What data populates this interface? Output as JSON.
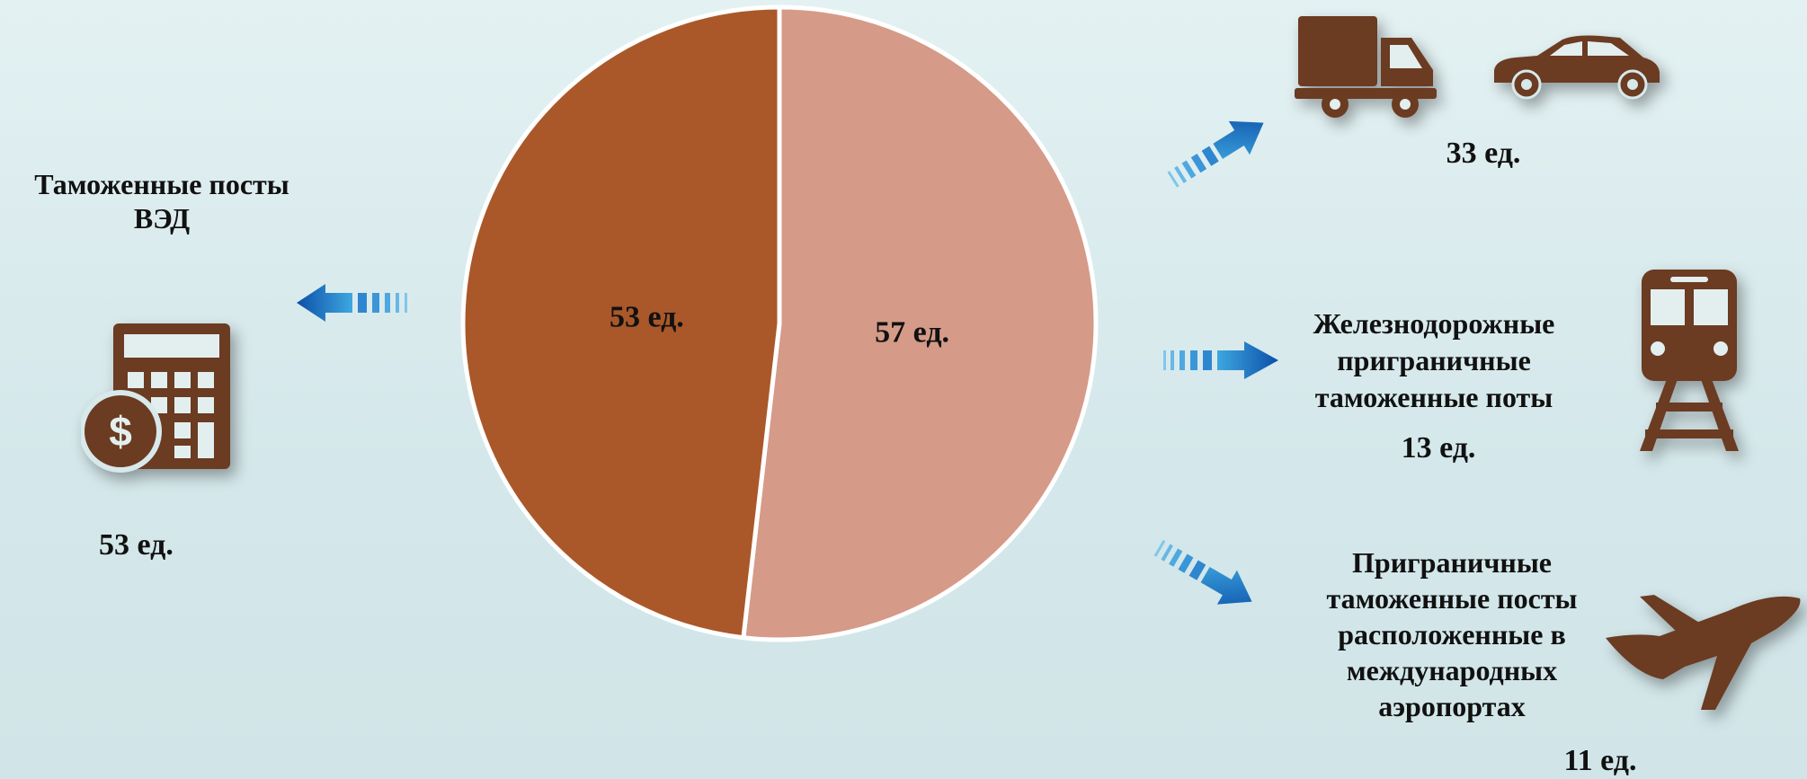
{
  "colors": {
    "brown": "#6b3b22",
    "slice_dark": "#aa5829",
    "slice_light": "#d59a88",
    "arrow": "#1f6fc6"
  },
  "chart_data": {
    "type": "pie",
    "title": "",
    "slices": [
      {
        "label": "57 ед.",
        "value": 57,
        "color": "#d59a88"
      },
      {
        "label": "53 ед.",
        "value": 53,
        "color": "#aa5829"
      }
    ]
  },
  "left": {
    "title_line1": "Таможенные посты",
    "title_line2": "ВЭД",
    "count": "53 ед.",
    "icon": "calculator-dollar-icon"
  },
  "right": {
    "road": {
      "count": "33 ед.",
      "icons": [
        "truck-icon",
        "car-icon"
      ]
    },
    "rail": {
      "line1": "Железнодорожные",
      "line2": "приграничные",
      "line3": "таможенные поты",
      "count": "13 ед.",
      "icon": "train-icon"
    },
    "air": {
      "line1": "Приграничные",
      "line2": "таможенные посты",
      "line3": "расположенные в",
      "line4": "международных",
      "line5": "аэропортах",
      "count": "11 ед.",
      "icon": "airplane-icon"
    }
  }
}
